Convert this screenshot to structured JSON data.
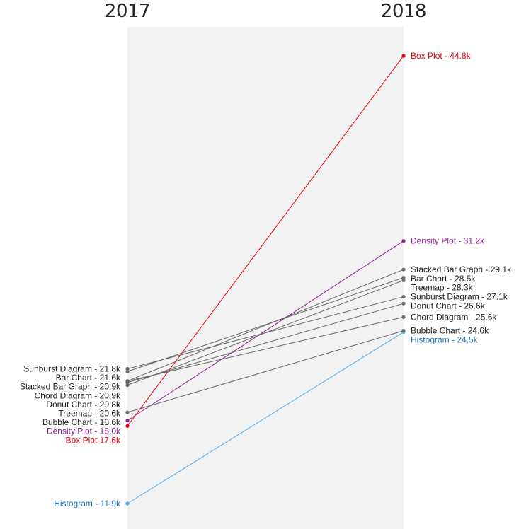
{
  "chart_data": {
    "type": "line",
    "x": [
      "2017",
      "2018"
    ],
    "series": [
      {
        "name": "Box Plot",
        "values": [
          17.6,
          44.8
        ],
        "color": "#e8000b",
        "label_2017": "Box Plot 17.6k",
        "label_2018": "Box Plot - 44.8k"
      },
      {
        "name": "Density Plot",
        "values": [
          18.0,
          31.2
        ],
        "color": "#8e1f8f",
        "label_2017": "Density Plot - 18.0k",
        "label_2018": "Density Plot - 31.2k"
      },
      {
        "name": "Stacked Bar Graph",
        "values": [
          20.9,
          29.1
        ],
        "color": "#666666",
        "label_2017": "Stacked Bar Graph - 20.9k",
        "label_2018": "Stacked Bar Graph - 29.1k"
      },
      {
        "name": "Bar Chart",
        "values": [
          21.6,
          28.5
        ],
        "color": "#666666",
        "label_2017": "Bar Chart - 21.6k",
        "label_2018": "Bar Chart - 28.5k"
      },
      {
        "name": "Treemap",
        "values": [
          20.6,
          28.3
        ],
        "color": "#666666",
        "label_2017": "Treemap - 20.6k",
        "label_2018": "Treemap - 28.3k"
      },
      {
        "name": "Sunburst Diagram",
        "values": [
          21.8,
          27.1
        ],
        "color": "#666666",
        "label_2017": "Sunburst Diagram - 21.8k",
        "label_2018": "Sunburst Diagram - 27.1k"
      },
      {
        "name": "Donut Chart",
        "values": [
          20.8,
          26.6
        ],
        "color": "#666666",
        "label_2017": "Donut Chart - 20.8k",
        "label_2018": "Donut Chart - 26.6k"
      },
      {
        "name": "Chord Diagram",
        "values": [
          20.9,
          25.6
        ],
        "color": "#666666",
        "label_2017": "Chord Diagram - 20.9k",
        "label_2018": "Chord Diagram - 25.6k"
      },
      {
        "name": "Histogram",
        "values": [
          11.9,
          24.5
        ],
        "color": "#4aaeee",
        "label_color": "#1f72b8",
        "label_2017": "Histogram - 11.9k",
        "label_2018": "Histogram - 24.5k"
      },
      {
        "name": "Bubble Chart",
        "values": [
          18.6,
          24.6
        ],
        "color": "#666666",
        "label_2017": "Bubble Chart - 18.6k",
        "label_2018": "Bubble Chart - 24.6k"
      }
    ],
    "title": "",
    "xlabel": "",
    "ylabel": "",
    "ylim": [
      11.9,
      44.8
    ],
    "grid": false,
    "legend": "none"
  }
}
